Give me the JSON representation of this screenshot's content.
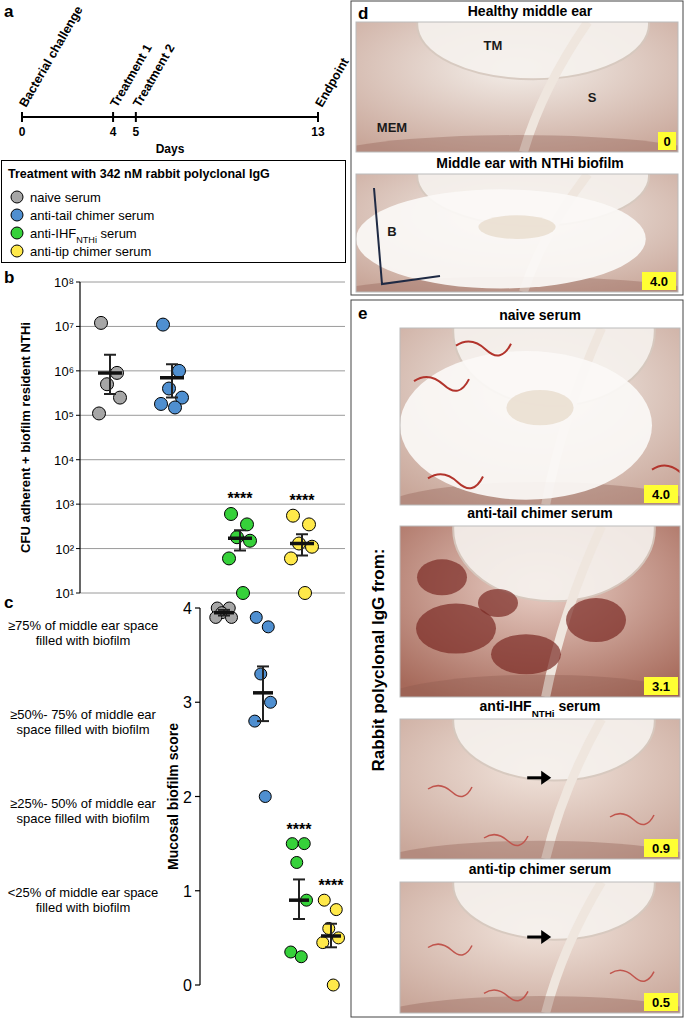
{
  "subscript_after": "IHF",
  "subscript": "NTHi",
  "panels": {
    "a": {
      "label": "a",
      "timeline": {
        "xlim": [
          0,
          13
        ],
        "ticks": [
          0,
          4,
          5,
          13
        ],
        "event_labels": [
          "Bacterial challenge",
          "Treatment 1",
          "Treatment 2",
          "Endpoint"
        ],
        "axis_label": "Days"
      },
      "legend": {
        "title": "Treatment with 342 nM rabbit polyclonal IgG"
      }
    },
    "b": {
      "label": "b"
    },
    "c": {
      "label": "c"
    },
    "d": {
      "label": "d",
      "images": [
        {
          "title": "Healthy middle ear",
          "labels": [
            "TM",
            "S",
            "MEM"
          ],
          "score": "0"
        },
        {
          "title": "Middle ear with NTHi biofilm",
          "labels": [
            "B"
          ],
          "score": "4.0"
        }
      ]
    },
    "e": {
      "label": "e",
      "side_label": "Rabbit polyclonal IgG from:",
      "images": [
        {
          "title": "naive serum",
          "score": "4.0"
        },
        {
          "title": "anti-tail chimer serum",
          "score": "3.1"
        },
        {
          "title": "anti-IHFNTHi serum",
          "score": "0.9"
        },
        {
          "title": "anti-tip chimer serum",
          "score": "0.5"
        }
      ]
    }
  },
  "chart_data": [
    {
      "type": "scatter",
      "y_label": "CFU adherent + biofilm resident NTHi",
      "log": "y",
      "grid": true,
      "tick_labels": "y",
      "ylim": [
        10,
        100000000
      ],
      "yticks": [
        {
          "value": 10,
          "label": "10¹"
        },
        {
          "value": 100,
          "label": "10²"
        },
        {
          "value": 1000,
          "label": "10³"
        },
        {
          "value": 10000,
          "label": "10⁴"
        },
        {
          "value": 100000,
          "label": "10⁵"
        },
        {
          "value": 1000000,
          "label": "10⁶"
        },
        {
          "value": 10000000,
          "label": "10⁷"
        },
        {
          "value": 100000000,
          "label": "10⁸"
        }
      ],
      "series": [
        {
          "name": "naive serum",
          "color": "#a6a6a6",
          "values": [
            12000000,
            900000,
            500000,
            250000,
            110000
          ],
          "mean": 900000,
          "err_low": 300000,
          "err_high": 2300000
        },
        {
          "name": "anti-tail chimer serum",
          "color": "#4f8fd0",
          "values": [
            11000000,
            1000000,
            400000,
            250000,
            180000,
            150000
          ],
          "mean": 700000,
          "err_low": 250000,
          "err_high": 1400000
        },
        {
          "name": "anti-IHFNTHi serum",
          "color": "#36d13a",
          "values": [
            600,
            350,
            180,
            150,
            60,
            10
          ],
          "mean": 170,
          "err_low": 90,
          "err_high": 260,
          "annotation": "****"
        },
        {
          "name": "anti-tip chimer serum",
          "color": "#ffe94a",
          "values": [
            550,
            350,
            130,
            110,
            60,
            10
          ],
          "mean": 130,
          "err_low": 70,
          "err_high": 210,
          "annotation": "****"
        }
      ]
    },
    {
      "type": "scatter",
      "y_label": "Mucosal biofilm score",
      "grid": false,
      "tick_labels": "y",
      "ylim": [
        0,
        4
      ],
      "yticks": [
        0,
        1,
        2,
        3,
        4
      ],
      "annotations": [
        "≥75% of middle ear space filled with biofilm",
        "≥50%- 75% of middle ear space filled with biofilm",
        "≥25%- 50% of middle ear space filled with biofilm",
        "<25% of middle ear space filled with biofilm"
      ],
      "series": [
        {
          "color": "#a6a6a6",
          "values": [
            4.0,
            4.0,
            3.95,
            3.9,
            3.9
          ],
          "mean": 3.95,
          "err_low": 3.92,
          "err_high": 3.98
        },
        {
          "color": "#4f8fd0",
          "values": [
            3.9,
            3.8,
            3.3,
            3.0,
            2.8,
            2.0
          ],
          "mean": 3.1,
          "err_low": 2.8,
          "err_high": 3.38
        },
        {
          "color": "#36d13a",
          "values": [
            1.5,
            1.5,
            1.3,
            0.9,
            0.35,
            0.3
          ],
          "mean": 0.9,
          "err_low": 0.7,
          "err_high": 1.12,
          "annotation": "****"
        },
        {
          "color": "#ffe94a",
          "values": [
            0.9,
            0.8,
            0.6,
            0.5,
            0.45,
            0.0
          ],
          "mean": 0.52,
          "err_low": 0.4,
          "err_high": 0.65,
          "annotation": "****"
        }
      ]
    }
  ]
}
